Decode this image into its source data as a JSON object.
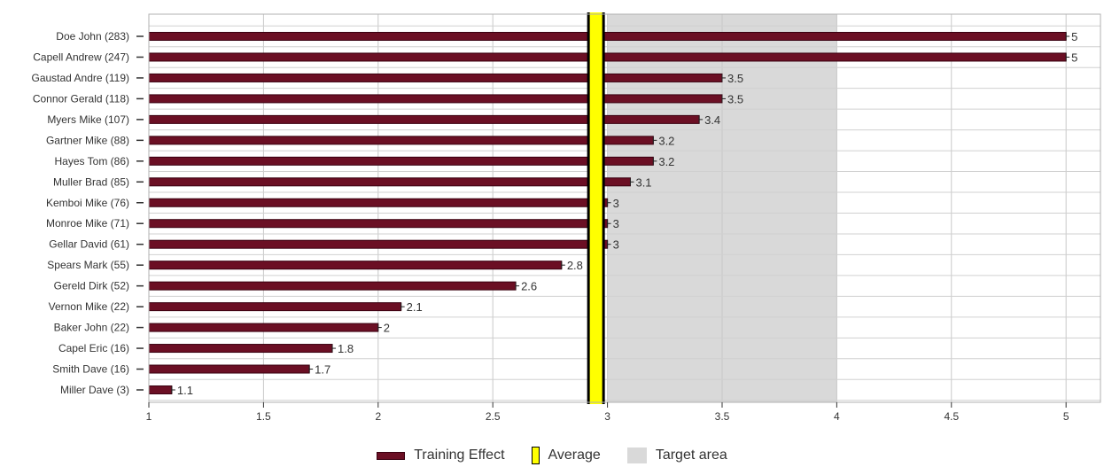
{
  "chart_data": {
    "type": "bar",
    "orientation": "horizontal",
    "categories": [
      "Doe John (283)",
      "Capell Andrew (247)",
      "Gaustad Andre (119)",
      "Connor Gerald (118)",
      "Myers Mike (107)",
      "Gartner Mike (88)",
      "Hayes Tom (86)",
      "Muller Brad (85)",
      "Kemboi Mike (76)",
      "Monroe Mike (71)",
      "Gellar David (61)",
      "Spears Mark (55)",
      "Gereld Dirk (52)",
      "Vernon Mike (22)",
      "Baker John (22)",
      "Capel Eric (16)",
      "Smith Dave (16)",
      "Miller Dave (3)"
    ],
    "series": [
      {
        "name": "Training Effect",
        "values": [
          5,
          5,
          3.5,
          3.5,
          3.4,
          3.2,
          3.2,
          3.1,
          3,
          3,
          3,
          2.8,
          2.6,
          2.1,
          2,
          1.8,
          1.7,
          1.1
        ],
        "color": "#6b0f24"
      }
    ],
    "data_labels": [
      "5",
      "5",
      "3.5",
      "3.5",
      "3.4",
      "3.2",
      "3.2",
      "3.1",
      "3",
      "3",
      "3",
      "2.8",
      "2.6",
      "2.1",
      "2",
      "1.8",
      "1.7",
      "1.1"
    ],
    "x_ticks": [
      1,
      1.5,
      2,
      2.5,
      3,
      3.5,
      4,
      4.5,
      5
    ],
    "x_tick_labels": [
      "1",
      "1.5",
      "2",
      "2.5",
      "3",
      "3.5",
      "4",
      "4.5",
      "5"
    ],
    "xlim": [
      1,
      5.15
    ],
    "average": {
      "value": 2.95,
      "color": "#ffff00"
    },
    "target_area": {
      "from": 3,
      "to": 4,
      "color": "#d9d9d9"
    },
    "grid": true,
    "legend_position": "bottom-center",
    "legend": [
      {
        "key": "bar",
        "label": "Training Effect"
      },
      {
        "key": "average",
        "label": "Average"
      },
      {
        "key": "target",
        "label": "Target area"
      }
    ]
  }
}
